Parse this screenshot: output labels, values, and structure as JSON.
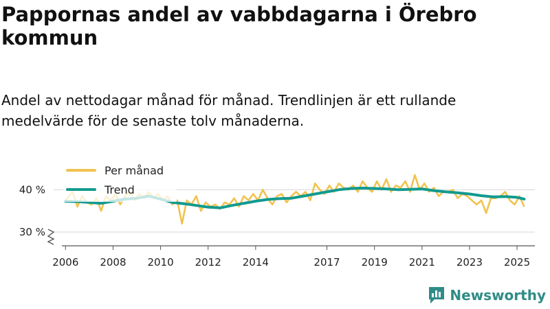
{
  "page": {
    "title": "Pappornas andel av vabbdagarna i Örebro kommun",
    "subtitle": "Andel av nettodagar månad för månad. Trendlinjen är ett rullande medelvärde för de senaste tolv månaderna.",
    "brand": "Newsworthy"
  },
  "colors": {
    "monthly": "#f2c24e",
    "trend": "#129a8f",
    "grid": "#d6d6d6",
    "axis": "#555555"
  },
  "chart_data": {
    "type": "line",
    "title": "Pappornas andel av vabbdagarna i Örebro kommun",
    "xlabel": "",
    "ylabel": "",
    "ylim": [
      30,
      42
    ],
    "xlim": [
      2005.5,
      2025.75
    ],
    "yticks": [
      30,
      40
    ],
    "ytick_labels": [
      "30 %",
      "40 %"
    ],
    "xticks": [
      2006,
      2008,
      2010,
      2012,
      2014,
      2017,
      2019,
      2021,
      2023,
      2025
    ],
    "xtick_labels": [
      "2006",
      "2008",
      "2010",
      "2012",
      "2014",
      "2017",
      "2019",
      "2021",
      "2023",
      "2025"
    ],
    "grid": true,
    "legend": "top-left",
    "series": [
      {
        "name": "Per månad",
        "x": [
          2006.0,
          2006.3,
          2006.5,
          2006.7,
          2006.9,
          2007.1,
          2007.3,
          2007.5,
          2007.7,
          2007.9,
          2008.1,
          2008.3,
          2008.5,
          2008.7,
          2008.9,
          2009.1,
          2009.3,
          2009.5,
          2009.7,
          2009.9,
          2010.1,
          2010.3,
          2010.5,
          2010.7,
          2010.9,
          2011.1,
          2011.3,
          2011.5,
          2011.7,
          2011.9,
          2012.1,
          2012.3,
          2012.5,
          2012.7,
          2012.9,
          2013.1,
          2013.3,
          2013.5,
          2013.7,
          2013.9,
          2014.1,
          2014.3,
          2014.5,
          2014.7,
          2014.9,
          2015.1,
          2015.3,
          2015.5,
          2015.7,
          2015.9,
          2016.1,
          2016.3,
          2016.5,
          2016.7,
          2016.9,
          2017.1,
          2017.3,
          2017.5,
          2017.7,
          2017.9,
          2018.1,
          2018.3,
          2018.5,
          2018.7,
          2018.9,
          2019.1,
          2019.3,
          2019.5,
          2019.7,
          2019.9,
          2020.1,
          2020.3,
          2020.5,
          2020.7,
          2020.9,
          2021.1,
          2021.3,
          2021.5,
          2021.7,
          2021.9,
          2022.1,
          2022.3,
          2022.5,
          2022.7,
          2022.9,
          2023.1,
          2023.3,
          2023.5,
          2023.7,
          2023.9,
          2024.1,
          2024.3,
          2024.5,
          2024.7,
          2024.9,
          2025.1,
          2025.3
        ],
        "values": [
          37.5,
          39.5,
          36.0,
          38.5,
          37.0,
          36.5,
          38.0,
          35.0,
          38.5,
          37.5,
          39.0,
          36.5,
          38.5,
          39.5,
          37.5,
          39.0,
          38.0,
          39.5,
          38.0,
          39.0,
          37.5,
          38.5,
          36.5,
          37.5,
          32.0,
          37.5,
          36.5,
          38.5,
          35.0,
          37.0,
          36.0,
          36.5,
          35.5,
          37.0,
          36.5,
          38.0,
          36.0,
          38.5,
          37.5,
          39.0,
          37.5,
          40.0,
          38.0,
          36.5,
          38.5,
          39.0,
          37.0,
          38.5,
          39.5,
          38.5,
          39.5,
          37.5,
          41.5,
          40.0,
          39.0,
          41.0,
          39.5,
          41.5,
          40.5,
          40.0,
          41.0,
          39.5,
          42.0,
          40.5,
          39.5,
          42.0,
          40.0,
          42.5,
          39.5,
          41.0,
          40.5,
          42.0,
          39.5,
          43.5,
          40.0,
          41.5,
          39.5,
          40.5,
          38.5,
          39.5,
          39.5,
          40.0,
          38.0,
          39.0,
          38.5,
          37.5,
          36.5,
          37.5,
          34.5,
          38.0,
          38.0,
          38.5,
          39.5,
          37.5,
          36.5,
          38.5,
          36.0
        ]
      },
      {
        "name": "Trend",
        "x": [
          2006.0,
          2006.5,
          2007.0,
          2007.5,
          2008.0,
          2008.5,
          2009.0,
          2009.5,
          2010.0,
          2010.5,
          2011.0,
          2011.5,
          2012.0,
          2012.5,
          2013.0,
          2013.5,
          2014.0,
          2014.5,
          2015.0,
          2015.5,
          2016.0,
          2016.5,
          2017.0,
          2017.5,
          2018.0,
          2018.5,
          2019.0,
          2019.5,
          2020.0,
          2020.5,
          2021.0,
          2021.5,
          2022.0,
          2022.5,
          2023.0,
          2023.5,
          2024.0,
          2024.5,
          2025.0,
          2025.3
        ],
        "values": [
          37.3,
          37.2,
          37.0,
          36.8,
          37.3,
          37.8,
          38.0,
          38.5,
          37.8,
          37.0,
          36.7,
          36.3,
          35.9,
          35.7,
          36.3,
          36.8,
          37.3,
          37.7,
          37.9,
          38.0,
          38.5,
          39.0,
          39.5,
          40.0,
          40.3,
          40.4,
          40.3,
          40.2,
          40.0,
          40.1,
          40.2,
          39.8,
          39.5,
          39.3,
          39.0,
          38.6,
          38.3,
          38.4,
          38.2,
          37.8
        ]
      }
    ]
  }
}
